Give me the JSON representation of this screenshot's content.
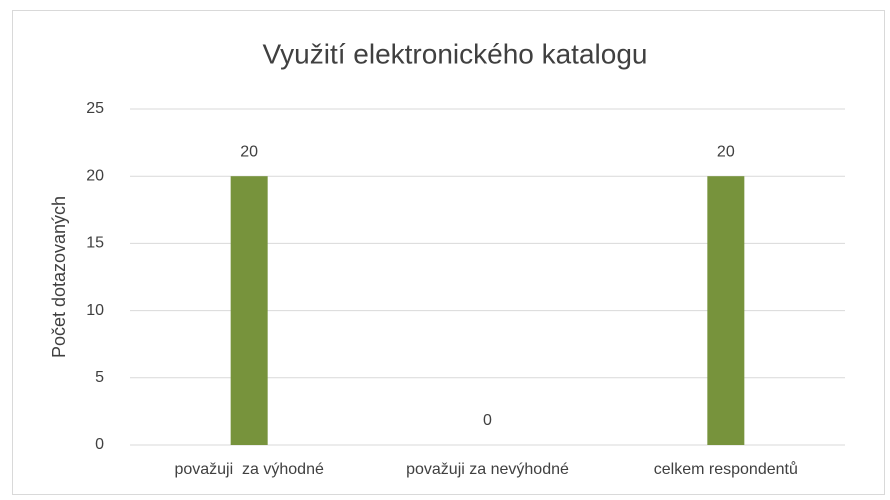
{
  "chart_data": {
    "type": "bar",
    "title": "Využití elektronického katalogu",
    "y_label": "Počet dotazovaných",
    "categories": [
      "považuji  za výhodné",
      "považuji za nevýhodné",
      "celkem respondentů"
    ],
    "values": [
      20,
      0,
      20
    ],
    "color": "#77933c",
    "ylim": [
      0,
      25
    ],
    "yticks": [
      0,
      5,
      10,
      15,
      20,
      25
    ],
    "grid": true,
    "data_labels": true
  }
}
